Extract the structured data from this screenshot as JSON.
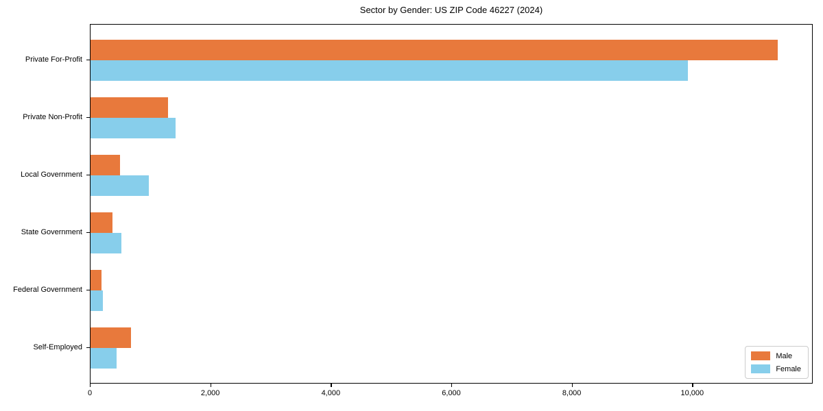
{
  "chart_data": {
    "type": "bar",
    "orientation": "horizontal",
    "title": "Sector by Gender: US ZIP Code 46227 (2024)",
    "categories": [
      "Private For-Profit",
      "Private Non-Profit",
      "Local Government",
      "State Government",
      "Federal Government",
      "Self-Employed"
    ],
    "series": [
      {
        "name": "Male",
        "color": "#E8793C",
        "values": [
          11430,
          1290,
          485,
          370,
          185,
          670
        ]
      },
      {
        "name": "Female",
        "color": "#87CEEB",
        "values": [
          9940,
          1410,
          970,
          510,
          200,
          435
        ]
      }
    ],
    "xlabel": "",
    "ylabel": "",
    "xlim": [
      0,
      12000
    ],
    "xticks": [
      {
        "value": 0,
        "label": "0"
      },
      {
        "value": 2000,
        "label": "2,000"
      },
      {
        "value": 4000,
        "label": "4,000"
      },
      {
        "value": 6000,
        "label": "6,000"
      },
      {
        "value": 8000,
        "label": "8,000"
      },
      {
        "value": 10000,
        "label": "10,000"
      }
    ],
    "grid": false,
    "legend_position": "lower right"
  }
}
